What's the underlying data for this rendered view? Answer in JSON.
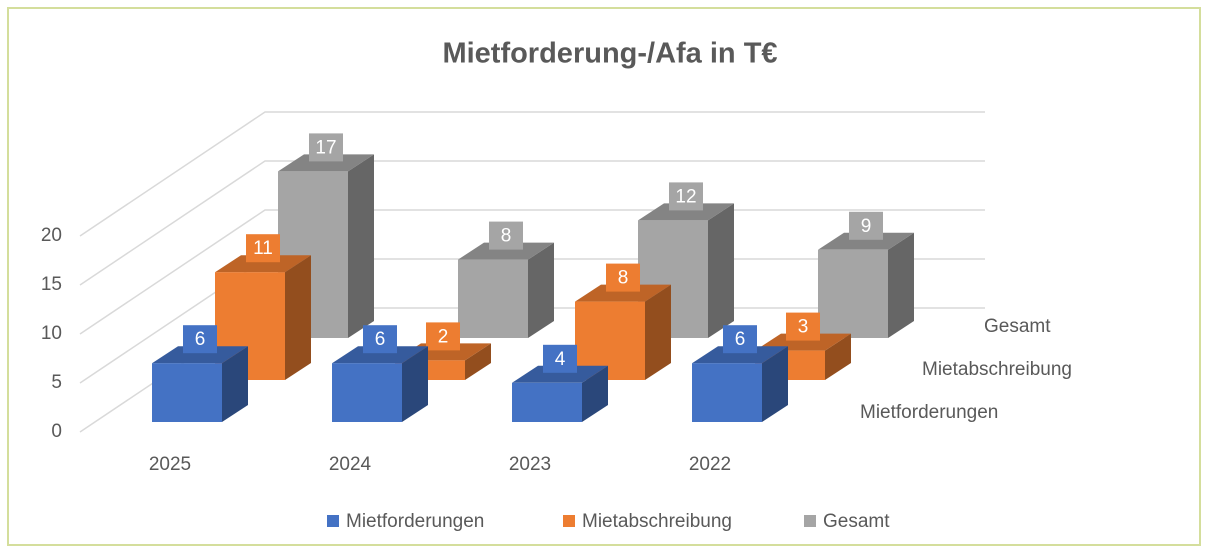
{
  "chart_data": {
    "type": "bar3d",
    "title": "Mietforderung-/Afa in T€",
    "categories": [
      "2025",
      "2024",
      "2023",
      "2022"
    ],
    "series": [
      {
        "name": "Mietforderungen",
        "color": "#4472c4",
        "values": [
          6,
          6,
          4,
          6
        ]
      },
      {
        "name": "Mietabschreibung",
        "color": "#ed7d31",
        "values": [
          11,
          2,
          8,
          3
        ]
      },
      {
        "name": "Gesamt",
        "color": "#a5a5a5",
        "values": [
          17,
          8,
          12,
          9
        ]
      }
    ],
    "ylim": [
      0,
      20
    ],
    "yticks": [
      0,
      5,
      10,
      15,
      20
    ],
    "grid": true,
    "legend": "bottom"
  }
}
